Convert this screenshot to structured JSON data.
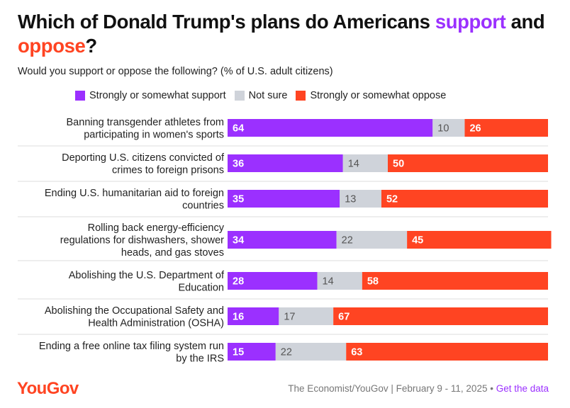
{
  "title": {
    "part1": "Which of Donald Trump's plans do Americans ",
    "support_word": "support",
    "part2": " and ",
    "oppose_word": "oppose",
    "part3": "?"
  },
  "subtitle": "Would you support or oppose the following? (% of U.S. adult citizens)",
  "legend": [
    {
      "label": "Strongly or somewhat support",
      "color": "#9b30ff"
    },
    {
      "label": "Not sure",
      "color": "#cfd3da"
    },
    {
      "label": "Strongly or somewhat oppose",
      "color": "#ff4422"
    }
  ],
  "chart_data": {
    "type": "bar",
    "orientation": "horizontal",
    "stacked": true,
    "categories": [
      [
        "Banning transgender athletes from",
        "participating in women's sports"
      ],
      [
        "Deporting U.S. citizens convicted of",
        "crimes to foreign prisons"
      ],
      [
        "Ending U.S. humanitarian aid to foreign",
        "countries"
      ],
      [
        "Rolling back energy-efficiency",
        "regulations for dishwashers, shower",
        "heads, and gas stoves"
      ],
      [
        "Abolishing the U.S. Department of",
        "Education"
      ],
      [
        "Abolishing the Occupational Safety and",
        "Health Administration (OSHA)"
      ],
      [
        "Ending a free online tax filing system run",
        "by the IRS"
      ]
    ],
    "series": [
      {
        "name": "Strongly or somewhat support",
        "color": "#9b30ff",
        "label_color": "#ffffff",
        "values": [
          64,
          36,
          35,
          34,
          28,
          16,
          15
        ]
      },
      {
        "name": "Not sure",
        "color": "#cfd3da",
        "label_color": "#555555",
        "values": [
          10,
          14,
          13,
          22,
          14,
          17,
          22
        ]
      },
      {
        "name": "Strongly or somewhat oppose",
        "color": "#ff4422",
        "label_color": "#ffffff",
        "values": [
          26,
          50,
          52,
          45,
          58,
          67,
          63
        ]
      }
    ],
    "xlim": [
      0,
      100
    ],
    "grid": false,
    "legend_position": "top"
  },
  "footer": {
    "logo": "YouGov",
    "source": "The Economist/YouGov | February 9 - 11, 2025 • ",
    "link": "Get the data"
  }
}
